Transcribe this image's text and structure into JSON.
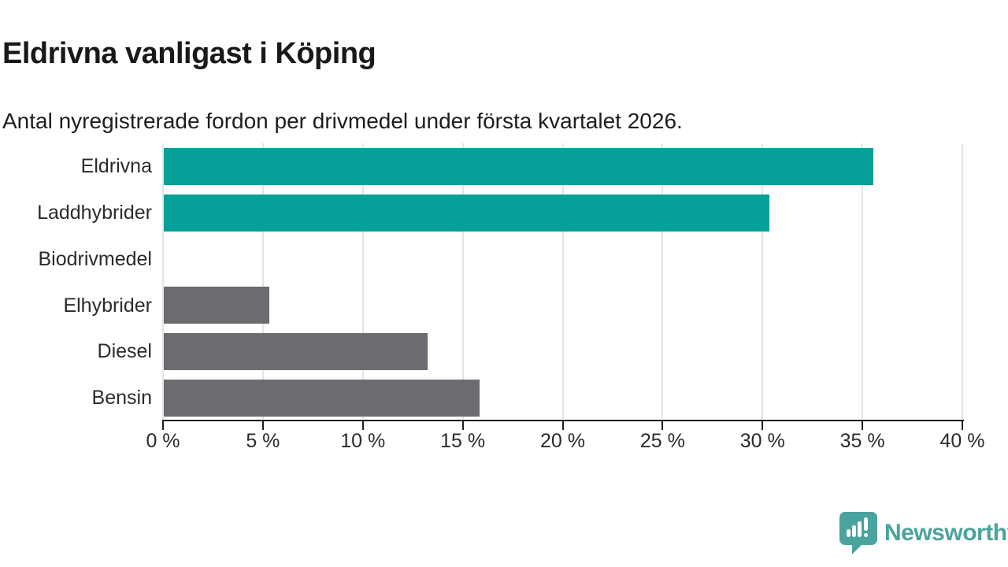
{
  "header": {
    "title": "Eldrivna vanligast i Köping",
    "subtitle": "Antal nyregistrerade fordon per drivmedel under första kvartalet 2026."
  },
  "chart_data": {
    "type": "bar",
    "orientation": "horizontal",
    "title": "Eldrivna vanligast i Köping",
    "subtitle": "Antal nyregistrerade fordon per drivmedel under första kvartalet 2026.",
    "categories": [
      "Eldrivna",
      "Laddhybrider",
      "Biodrivmedel",
      "Elhybrider",
      "Diesel",
      "Bensin"
    ],
    "values": [
      35.5,
      30.3,
      0,
      5.3,
      13.2,
      15.8
    ],
    "bar_colors": [
      "#05a098",
      "#05a098",
      "#6b6b70",
      "#6b6b70",
      "#6b6b70",
      "#6b6b70"
    ],
    "highlight_color": "#05a098",
    "default_color": "#6b6b70",
    "xlabel": "",
    "ylabel": "",
    "xlim": [
      0,
      40
    ],
    "xticks": [
      0,
      5,
      10,
      15,
      20,
      25,
      30,
      35,
      40
    ],
    "xtick_labels": [
      "0 %",
      "5 %",
      "10 %",
      "15 %",
      "20 %",
      "25 %",
      "30 %",
      "35 %",
      "40 %"
    ],
    "grid": "vertical",
    "legend": "none"
  },
  "footer": {
    "brand": "Newsworthy",
    "brand_color": "#4aa39e"
  }
}
